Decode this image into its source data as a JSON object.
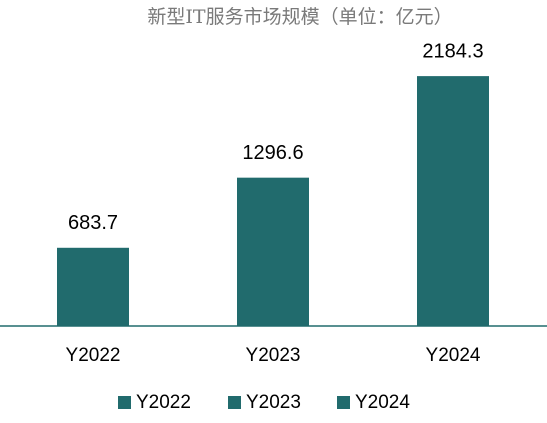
{
  "chart_data": {
    "type": "bar",
    "title": "新型IT服务市场规模（单位：亿元）",
    "categories": [
      "Y2022",
      "Y2023",
      "Y2024"
    ],
    "series": [
      {
        "name": "Y2022",
        "color": "#216b6d",
        "values": [
          683.7,
          null,
          null
        ]
      },
      {
        "name": "Y2023",
        "color": "#216b6d",
        "values": [
          null,
          1296.6,
          null
        ]
      },
      {
        "name": "Y2024",
        "color": "#216b6d",
        "values": [
          null,
          null,
          2184.3
        ]
      }
    ],
    "ylim": [
      0,
      2500
    ]
  }
}
